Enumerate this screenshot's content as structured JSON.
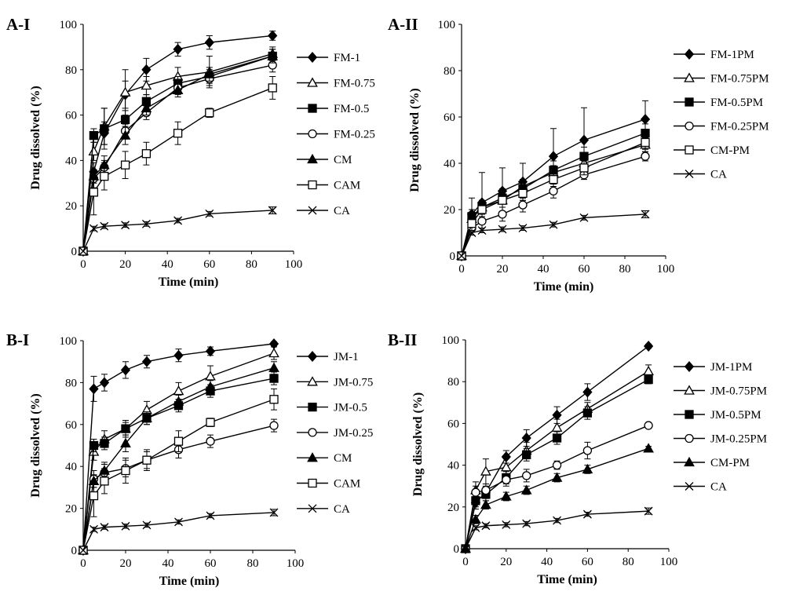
{
  "chart_data": [
    {
      "type": "line",
      "panel_label": "A-I",
      "xlabel": "Time (min)",
      "ylabel": "Drug dissolved (%)",
      "xlim": [
        0,
        100
      ],
      "ylim": [
        0,
        100
      ],
      "xticks": [
        0,
        20,
        40,
        60,
        80,
        100
      ],
      "yticks": [
        0,
        20,
        40,
        60,
        80,
        100
      ],
      "grid": false,
      "legend": "right",
      "x": [
        0,
        5,
        10,
        20,
        30,
        45,
        60,
        90
      ],
      "series": [
        {
          "name": "FM-1",
          "marker": "diamond",
          "values": [
            0,
            35,
            52,
            69,
            80,
            89,
            92,
            95
          ],
          "errors": [
            0,
            4,
            5,
            6,
            5,
            3,
            3,
            2
          ]
        },
        {
          "name": "FM-0.75",
          "marker": "triangle-open",
          "values": [
            0,
            44,
            55,
            70,
            73,
            77,
            79,
            87
          ],
          "errors": [
            0,
            4,
            8,
            10,
            4,
            4,
            7,
            3
          ]
        },
        {
          "name": "FM-0.5",
          "marker": "square",
          "values": [
            0,
            51,
            54,
            58,
            66,
            74,
            77,
            86
          ],
          "errors": [
            0,
            3,
            9,
            4,
            3,
            3,
            3,
            3
          ]
        },
        {
          "name": "FM-0.25",
          "marker": "circle-open",
          "values": [
            0,
            32,
            37,
            53,
            61,
            72,
            76,
            82
          ],
          "errors": [
            0,
            4,
            3,
            3,
            3,
            3,
            3,
            3
          ]
        },
        {
          "name": "CM",
          "marker": "triangle",
          "values": [
            0,
            33,
            38,
            51,
            63,
            71,
            78,
            86
          ],
          "errors": [
            0,
            3,
            4,
            4,
            3,
            3,
            3,
            3
          ]
        },
        {
          "name": "CAM",
          "marker": "square-open",
          "values": [
            0,
            26,
            33,
            38,
            43,
            52,
            61,
            72
          ],
          "errors": [
            0,
            10,
            6,
            6,
            5,
            5,
            2,
            5
          ]
        },
        {
          "name": "CA",
          "marker": "x",
          "values": [
            0,
            10,
            11,
            11.5,
            12,
            13.5,
            16.5,
            18
          ],
          "errors": [
            0,
            1,
            1,
            1,
            1,
            1,
            1,
            1.5
          ]
        }
      ]
    },
    {
      "type": "line",
      "panel_label": "A-II",
      "xlabel": "Time (min)",
      "ylabel": "Drug dissolved (%)",
      "xlim": [
        0,
        100
      ],
      "ylim": [
        0,
        100
      ],
      "xticks": [
        0,
        20,
        40,
        60,
        80,
        100
      ],
      "yticks": [
        0,
        20,
        40,
        60,
        80,
        100
      ],
      "grid": false,
      "legend": "right",
      "x": [
        0,
        5,
        10,
        20,
        30,
        45,
        60,
        90
      ],
      "series": [
        {
          "name": "FM-1PM",
          "marker": "diamond",
          "values": [
            0,
            18,
            23,
            28,
            32,
            43,
            50,
            59
          ],
          "errors": [
            0,
            7,
            13,
            10,
            8,
            12,
            14,
            8
          ]
        },
        {
          "name": "FM-0.75PM",
          "marker": "triangle-open",
          "values": [
            0,
            16,
            21,
            24,
            30,
            36,
            40,
            48
          ],
          "errors": [
            0,
            3,
            3,
            3,
            3,
            3,
            3,
            3
          ]
        },
        {
          "name": "FM-0.5PM",
          "marker": "square",
          "values": [
            0,
            17,
            21,
            25,
            29,
            37,
            43,
            53
          ],
          "errors": [
            0,
            3,
            3,
            4,
            4,
            4,
            4,
            4
          ]
        },
        {
          "name": "FM-0.25PM",
          "marker": "circle-open",
          "values": [
            0,
            12,
            15,
            18,
            22,
            28,
            35,
            43
          ],
          "errors": [
            0,
            3,
            3,
            3,
            3,
            3,
            2,
            2
          ]
        },
        {
          "name": "CM-PM",
          "marker": "square-open",
          "values": [
            0,
            14,
            20,
            24,
            27,
            33,
            38,
            49
          ],
          "errors": [
            0,
            3,
            3,
            3,
            3,
            3,
            3,
            3
          ]
        },
        {
          "name": "CA",
          "marker": "x",
          "values": [
            0,
            10,
            11,
            11.5,
            12,
            13.5,
            16.5,
            18
          ],
          "errors": [
            0,
            1,
            1,
            1,
            1,
            1,
            1,
            1.5
          ]
        }
      ]
    },
    {
      "type": "line",
      "panel_label": "B-I",
      "xlabel": "Time (min)",
      "ylabel": "Drug dissolved (%)",
      "xlim": [
        0,
        100
      ],
      "ylim": [
        0,
        100
      ],
      "xticks": [
        0,
        20,
        40,
        60,
        80,
        100
      ],
      "yticks": [
        0,
        20,
        40,
        60,
        80,
        100
      ],
      "grid": false,
      "legend": "right",
      "x": [
        0,
        5,
        10,
        20,
        30,
        45,
        60,
        90
      ],
      "series": [
        {
          "name": "JM-1",
          "marker": "diamond",
          "values": [
            0,
            77,
            80,
            86,
            90,
            93,
            95,
            98.5
          ],
          "errors": [
            0,
            6,
            4,
            4,
            3,
            3,
            2,
            1
          ]
        },
        {
          "name": "JM-0.75",
          "marker": "triangle-open",
          "values": [
            0,
            47,
            53,
            58,
            67,
            76,
            83,
            94
          ],
          "errors": [
            0,
            4,
            4,
            4,
            4,
            4,
            5,
            3
          ]
        },
        {
          "name": "JM-0.5",
          "marker": "square",
          "values": [
            0,
            50,
            51,
            58,
            63,
            69,
            76,
            82
          ],
          "errors": [
            0,
            3,
            3,
            3,
            3,
            3,
            3,
            3
          ]
        },
        {
          "name": "JM-0.25",
          "marker": "circle-open",
          "values": [
            0,
            34,
            37,
            39,
            43,
            48,
            52,
            59.5
          ],
          "errors": [
            0,
            4,
            4,
            4,
            4,
            4,
            3,
            3
          ]
        },
        {
          "name": "CM",
          "marker": "triangle",
          "values": [
            0,
            33,
            38,
            51,
            63,
            71,
            78,
            87
          ],
          "errors": [
            0,
            3,
            4,
            4,
            3,
            3,
            3,
            3
          ]
        },
        {
          "name": "CAM",
          "marker": "square-open",
          "values": [
            0,
            26,
            33,
            38,
            43,
            52,
            61,
            72
          ],
          "errors": [
            0,
            10,
            6,
            6,
            5,
            5,
            2,
            5
          ]
        },
        {
          "name": "CA",
          "marker": "x",
          "values": [
            0,
            10,
            11,
            11.5,
            12,
            13.5,
            16.5,
            18
          ],
          "errors": [
            0,
            1,
            1,
            1,
            1,
            1,
            1,
            1.5
          ]
        }
      ]
    },
    {
      "type": "line",
      "panel_label": "B-II",
      "xlabel": "Time (min)",
      "ylabel": "Drug dissolved (%)",
      "xlim": [
        0,
        100
      ],
      "ylim": [
        0,
        100
      ],
      "xticks": [
        0,
        20,
        40,
        60,
        80,
        100
      ],
      "yticks": [
        0,
        20,
        40,
        60,
        80,
        100
      ],
      "grid": false,
      "legend": "right",
      "x": [
        0,
        5,
        10,
        20,
        30,
        45,
        60,
        90
      ],
      "series": [
        {
          "name": "JM-1PM",
          "marker": "diamond",
          "values": [
            0,
            22,
            27,
            44,
            53,
            64,
            75,
            97
          ],
          "errors": [
            0,
            3,
            3,
            3,
            4,
            4,
            4,
            1
          ]
        },
        {
          "name": "JM-0.75PM",
          "marker": "triangle-open",
          "values": [
            0,
            28,
            37,
            39,
            47,
            58,
            67,
            85
          ],
          "errors": [
            0,
            4,
            6,
            4,
            4,
            4,
            3,
            3
          ]
        },
        {
          "name": "JM-0.5PM",
          "marker": "square",
          "values": [
            0,
            23,
            26,
            34,
            45,
            53,
            65,
            81
          ],
          "errors": [
            0,
            3,
            3,
            3,
            3,
            3,
            3,
            2
          ]
        },
        {
          "name": "JM-0.25PM",
          "marker": "circle-open",
          "values": [
            0,
            27,
            28,
            33,
            35,
            40,
            47,
            59
          ],
          "errors": [
            0,
            3,
            3,
            3,
            3,
            2,
            4,
            1
          ]
        },
        {
          "name": "CM-PM",
          "marker": "triangle",
          "values": [
            0,
            14,
            21,
            25,
            28,
            34,
            38,
            48
          ],
          "errors": [
            0,
            2,
            2,
            2,
            2,
            2,
            2,
            1
          ]
        },
        {
          "name": "CA",
          "marker": "x",
          "values": [
            0,
            10,
            11,
            11.5,
            12,
            13.5,
            16.5,
            18
          ],
          "errors": [
            0,
            1,
            1,
            1,
            1,
            1,
            1,
            1.5
          ]
        }
      ]
    }
  ]
}
